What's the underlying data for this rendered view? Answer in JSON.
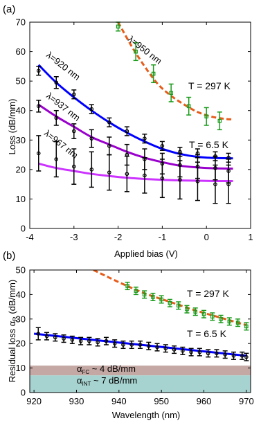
{
  "chart_data": [
    {
      "panel_label": "(a)",
      "type": "line",
      "xlabel": "Applied bias (V)",
      "ylabel": "Loss (dB/mm)",
      "xlim": [
        -4,
        1
      ],
      "ylim": [
        0,
        70
      ],
      "xticks": [
        -4,
        -3,
        -2,
        -1,
        0,
        1
      ],
      "yticks": [
        0,
        10,
        20,
        30,
        40,
        50,
        60,
        70
      ],
      "grid": false,
      "series": [
        {
          "name": "λ=920 nm",
          "color": "#0000ff",
          "marker_color": "#000000",
          "points": [
            {
              "x": -3.8,
              "y": 53.5,
              "err": 1.5
            },
            {
              "x": -3.4,
              "y": 49.5,
              "err": 2
            },
            {
              "x": -3.0,
              "y": 45.5,
              "err": 1.5
            },
            {
              "x": -2.6,
              "y": 40.5,
              "err": 1.5
            },
            {
              "x": -2.2,
              "y": 36,
              "err": 1.5
            },
            {
              "x": -1.8,
              "y": 33,
              "err": 1.5
            },
            {
              "x": -1.4,
              "y": 30.5,
              "err": 1.5
            },
            {
              "x": -1.0,
              "y": 28,
              "err": 1.5
            },
            {
              "x": -0.6,
              "y": 26,
              "err": 1.5
            },
            {
              "x": -0.2,
              "y": 25.5,
              "err": 1.5
            },
            {
              "x": 0.2,
              "y": 24.5,
              "err": 1.5
            },
            {
              "x": 0.5,
              "y": 24,
              "err": 1.5
            }
          ],
          "fit_x": [
            -3.8,
            -3.4,
            -3.0,
            -2.6,
            -2.2,
            -1.8,
            -1.4,
            -1.0,
            -0.6,
            -0.2,
            0.2,
            0.6
          ],
          "fit_y": [
            55.5,
            49.5,
            44.5,
            40,
            36,
            32.5,
            29.5,
            27,
            25.3,
            24.3,
            23.9,
            23.8
          ]
        },
        {
          "name": "λ=937 nm",
          "color": "#9900cc",
          "marker_color": "#000000",
          "points": [
            {
              "x": -3.8,
              "y": 41.5,
              "err": 2
            },
            {
              "x": -3.4,
              "y": 37.5,
              "err": 2.5
            },
            {
              "x": -3.0,
              "y": 33,
              "err": 2.5
            },
            {
              "x": -2.6,
              "y": 30.5,
              "err": 3
            },
            {
              "x": -2.2,
              "y": 28,
              "err": 3
            },
            {
              "x": -1.8,
              "y": 25,
              "err": 3.5
            },
            {
              "x": -1.4,
              "y": 23.5,
              "err": 3.5
            },
            {
              "x": -1.0,
              "y": 22,
              "err": 3.5
            },
            {
              "x": -0.6,
              "y": 21.5,
              "err": 4
            },
            {
              "x": -0.2,
              "y": 21,
              "err": 4
            },
            {
              "x": 0.2,
              "y": 20.5,
              "err": 4
            },
            {
              "x": 0.5,
              "y": 19.5,
              "err": 4
            }
          ],
          "fit_x": [
            -3.8,
            -3.4,
            -3.0,
            -2.6,
            -2.2,
            -1.8,
            -1.4,
            -1.0,
            -0.6,
            -0.2,
            0.2,
            0.6
          ],
          "fit_y": [
            42,
            38,
            34.5,
            31,
            28.5,
            26,
            24,
            22.5,
            21.3,
            20.7,
            20.4,
            20.3
          ]
        },
        {
          "name": "λ=967 nm",
          "color": "#cc33ff",
          "marker_color": "#000000",
          "points": [
            {
              "x": -3.8,
              "y": 25.5,
              "err": 6
            },
            {
              "x": -3.4,
              "y": 23.5,
              "err": 6
            },
            {
              "x": -3.0,
              "y": 21,
              "err": 6
            },
            {
              "x": -2.6,
              "y": 20,
              "err": 6
            },
            {
              "x": -2.2,
              "y": 19,
              "err": 6
            },
            {
              "x": -1.8,
              "y": 18.5,
              "err": 6
            },
            {
              "x": -1.4,
              "y": 18,
              "err": 6
            },
            {
              "x": -1.0,
              "y": 17,
              "err": 6.5
            },
            {
              "x": -0.6,
              "y": 16.5,
              "err": 6.5
            },
            {
              "x": -0.2,
              "y": 16,
              "err": 6.5
            },
            {
              "x": 0.2,
              "y": 15,
              "err": 6.5
            },
            {
              "x": 0.5,
              "y": 15,
              "err": 6.5
            }
          ],
          "fit_x": [
            -3.8,
            -3.4,
            -3.0,
            -2.6,
            -2.2,
            -1.8,
            -1.4,
            -1.0,
            -0.6,
            -0.2,
            0.2,
            0.6
          ],
          "fit_y": [
            22,
            20.5,
            19.5,
            18.5,
            17.8,
            17.2,
            16.8,
            16.5,
            16.3,
            16.2,
            16.1,
            16.1
          ]
        },
        {
          "name": "λ=950 nm",
          "color": "#e65c1a",
          "marker_color": "#1a9b1a",
          "dashed": true,
          "points": [
            {
              "x": -2.0,
              "y": 68.5,
              "err": 1.5
            },
            {
              "x": -1.6,
              "y": 60,
              "err": 3
            },
            {
              "x": -1.2,
              "y": 52.5,
              "err": 3
            },
            {
              "x": -0.8,
              "y": 46,
              "err": 3
            },
            {
              "x": -0.4,
              "y": 41.5,
              "err": 3
            },
            {
              "x": 0.0,
              "y": 38,
              "err": 3
            },
            {
              "x": 0.3,
              "y": 36.5,
              "err": 3
            }
          ],
          "fit_x": [
            -2.0,
            -1.7,
            -1.4,
            -1.1,
            -0.8,
            -0.5,
            -0.2,
            0.1,
            0.4,
            0.6
          ],
          "fit_y": [
            70,
            62,
            55,
            49,
            45,
            42,
            39.5,
            38,
            37.2,
            37
          ]
        }
      ],
      "annotations": [
        {
          "text": "λ=950 nm"
        },
        {
          "text": "λ=920 nm"
        },
        {
          "text": "λ=937 nm"
        },
        {
          "text": "λ=967 nm"
        },
        {
          "text": "T = 297 K"
        },
        {
          "text": "T = 6.5 K"
        }
      ]
    },
    {
      "panel_label": "(b)",
      "type": "line",
      "xlabel": "Wavelength (nm)",
      "ylabel": "Residual loss α_R (dB/mm)",
      "xlim": [
        919,
        971
      ],
      "ylim": [
        0,
        50
      ],
      "xticks": [
        920,
        930,
        940,
        950,
        960,
        970
      ],
      "yticks": [
        0,
        10,
        20,
        30,
        40,
        50
      ],
      "grid": false,
      "bands": [
        {
          "label": "α_FC ~ 4 dB/mm",
          "from": 7,
          "to": 11,
          "color": "#c4a8a4"
        },
        {
          "label": "α_INT ~ 7 dB/mm",
          "from": 0,
          "to": 7,
          "color": "#a6d2cf"
        }
      ],
      "series": [
        {
          "name": "T = 6.5 K",
          "color": "#0000ff",
          "marker_color": "#000000",
          "points": [
            {
              "x": 921,
              "y": 24,
              "err": 2.5
            },
            {
              "x": 923,
              "y": 23,
              "err": 1.5
            },
            {
              "x": 925,
              "y": 22.5,
              "err": 1.5
            },
            {
              "x": 927,
              "y": 22,
              "err": 1.5
            },
            {
              "x": 929,
              "y": 21.5,
              "err": 1.5
            },
            {
              "x": 931,
              "y": 21,
              "err": 1.5
            },
            {
              "x": 933,
              "y": 21,
              "err": 1.5
            },
            {
              "x": 935,
              "y": 20.5,
              "err": 1.5
            },
            {
              "x": 937,
              "y": 21,
              "err": 1.5
            },
            {
              "x": 939,
              "y": 20,
              "err": 1.5
            },
            {
              "x": 941,
              "y": 19.5,
              "err": 1.5
            },
            {
              "x": 943,
              "y": 19.5,
              "err": 1.5
            },
            {
              "x": 945,
              "y": 19.5,
              "err": 1.5
            },
            {
              "x": 947,
              "y": 19,
              "err": 1.5
            },
            {
              "x": 949,
              "y": 18.5,
              "err": 1.5
            },
            {
              "x": 951,
              "y": 18,
              "err": 1.5
            },
            {
              "x": 953,
              "y": 17.5,
              "err": 1.5
            },
            {
              "x": 955,
              "y": 17,
              "err": 1.5
            },
            {
              "x": 957,
              "y": 16.5,
              "err": 1.5
            },
            {
              "x": 959,
              "y": 16.5,
              "err": 1.5
            },
            {
              "x": 961,
              "y": 16,
              "err": 1.5
            },
            {
              "x": 963,
              "y": 16,
              "err": 1.5
            },
            {
              "x": 965,
              "y": 15.5,
              "err": 1.5
            },
            {
              "x": 967,
              "y": 15,
              "err": 1.5
            },
            {
              "x": 969,
              "y": 15,
              "err": 1.5
            },
            {
              "x": 970,
              "y": 14.5,
              "err": 1.5
            }
          ],
          "fit_x": [
            920,
            970
          ],
          "fit_y": [
            24,
            15
          ]
        },
        {
          "name": "T = 297 K",
          "color": "#e65c1a",
          "marker_color": "#1a9b1a",
          "dashed": true,
          "points": [
            {
              "x": 942,
              "y": 43.5,
              "err": 1.5
            },
            {
              "x": 944,
              "y": 41.5,
              "err": 1.5
            },
            {
              "x": 946,
              "y": 40,
              "err": 1.5
            },
            {
              "x": 948,
              "y": 39,
              "err": 1.5
            },
            {
              "x": 950,
              "y": 38,
              "err": 1.5
            },
            {
              "x": 952,
              "y": 36.5,
              "err": 1.5
            },
            {
              "x": 954,
              "y": 35.5,
              "err": 1.5
            },
            {
              "x": 956,
              "y": 34,
              "err": 1.5
            },
            {
              "x": 958,
              "y": 33,
              "err": 1.5
            },
            {
              "x": 960,
              "y": 32,
              "err": 1.5
            },
            {
              "x": 962,
              "y": 31,
              "err": 1.5
            },
            {
              "x": 964,
              "y": 30,
              "err": 1.5
            },
            {
              "x": 966,
              "y": 29,
              "err": 1.5
            },
            {
              "x": 968,
              "y": 28.5,
              "err": 1.5
            },
            {
              "x": 970,
              "y": 27,
              "err": 1.5
            }
          ],
          "fit_x": [
            934,
            940,
            946,
            952,
            958,
            964,
            970
          ],
          "fit_y": [
            50,
            45,
            40.5,
            37,
            33.5,
            30.5,
            27.5
          ]
        }
      ],
      "annotations": [
        {
          "text": "T = 297 K"
        },
        {
          "text": "T = 6.5 K"
        }
      ]
    }
  ],
  "labels": {
    "a": {
      "panel": "(a)",
      "xlabel": "Applied bias (V)",
      "ylabel": "Loss (dB/mm)",
      "lam950": "λ=950 nm",
      "lam920": "λ=920 nm",
      "lam937": "λ=937 nm",
      "lam967": "λ=967 nm",
      "t297": "T = 297 K",
      "t65": "T = 6.5 K"
    },
    "b": {
      "panel": "(b)",
      "xlabel": "Wavelength (nm)",
      "ylabel_main": "Residual loss α",
      "ylabel_sub": "R",
      "ylabel_unit": " (dB/mm)",
      "t297": "T = 297 K",
      "t65": "T = 6.5 K",
      "fc_alpha": "α",
      "fc_sub": "FC",
      "fc_rest": " ~ 4 dB/mm",
      "int_alpha": "α",
      "int_sub": "INT",
      "int_rest": " ~ 7 dB/mm"
    }
  }
}
